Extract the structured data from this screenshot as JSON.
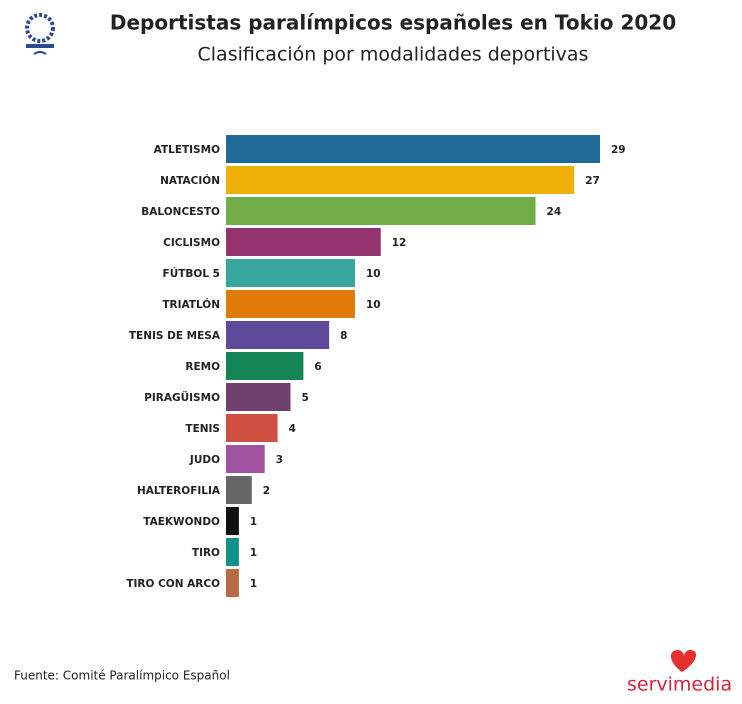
{
  "chart_data": {
    "type": "bar",
    "orientation": "horizontal",
    "title": "Deportistas paralímpicos españoles en Tokio 2020",
    "subtitle": "Clasificación por modalidades deportivas",
    "categories": [
      "ATLETISMO",
      "NATACIÓN",
      "BALONCESTO",
      "CICLISMO",
      "FÚTBOL 5",
      "TRIATLÓN",
      "TENIS DE MESA",
      "REMO",
      "PIRAGÜISMO",
      "TENIS",
      "JUDO",
      "HALTEROFILIA",
      "TAEKWONDO",
      "TIRO",
      "TIRO CON ARCO"
    ],
    "values": [
      29,
      27,
      24,
      12,
      10,
      10,
      8,
      6,
      5,
      4,
      3,
      2,
      1,
      1,
      1
    ],
    "colors": [
      "#1f6a96",
      "#f0b00a",
      "#72ad48",
      "#94336e",
      "#3aa6a0",
      "#e07b0a",
      "#5e4a9a",
      "#138453",
      "#6f3f6e",
      "#cf5040",
      "#a052a0",
      "#666666",
      "#111111",
      "#12918a",
      "#b86a45"
    ],
    "source": "Fuente: Comité Paralímpico Español",
    "brand": "servimedia"
  }
}
